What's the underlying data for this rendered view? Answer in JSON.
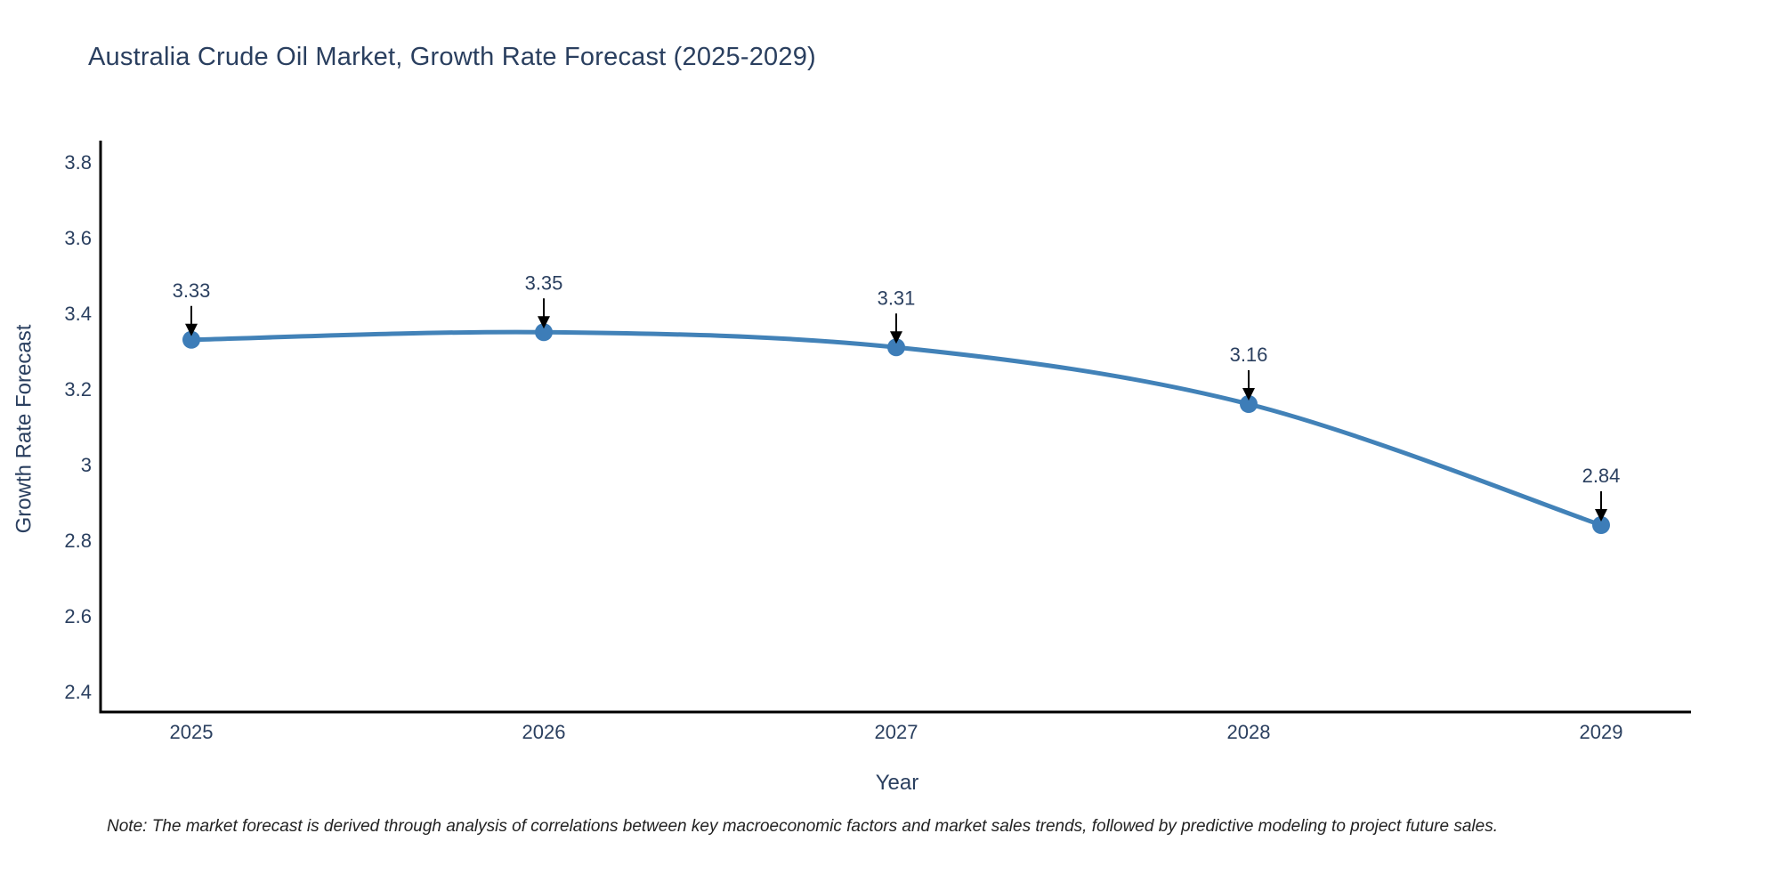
{
  "page": {
    "title": "Australia Crude Oil Market, Growth Rate Forecast (2025-2029)",
    "note": "Note: The market forecast is derived through analysis of correlations between key macroeconomic factors and market sales trends, followed by predictive modeling to project future sales."
  },
  "chart_data": {
    "type": "line",
    "title": "Australia Crude Oil Market, Growth Rate Forecast (2025-2029)",
    "xlabel": "Year",
    "ylabel": "Growth Rate Forecast",
    "categories": [
      "2025",
      "2026",
      "2027",
      "2028",
      "2029"
    ],
    "series": [
      {
        "name": "Growth Rate Forecast",
        "values": [
          3.33,
          3.35,
          3.31,
          3.16,
          2.84
        ],
        "data_labels": [
          "3.33",
          "3.35",
          "3.31",
          "3.16",
          "2.84"
        ]
      }
    ],
    "yticks": [
      3.8,
      3.6,
      3.4,
      3.2,
      3,
      2.8,
      2.6,
      2.4
    ],
    "ylim": [
      2.35,
      3.86
    ],
    "grid": false,
    "legend_position": "none",
    "annotations_style": "value label with downward black arrow above each marker",
    "colors": {
      "line": "#4282b8",
      "marker": "#3d7db8",
      "text": "#2a3f5f",
      "axis": "#000000",
      "arrow": "#000000",
      "note": "#222222"
    }
  }
}
